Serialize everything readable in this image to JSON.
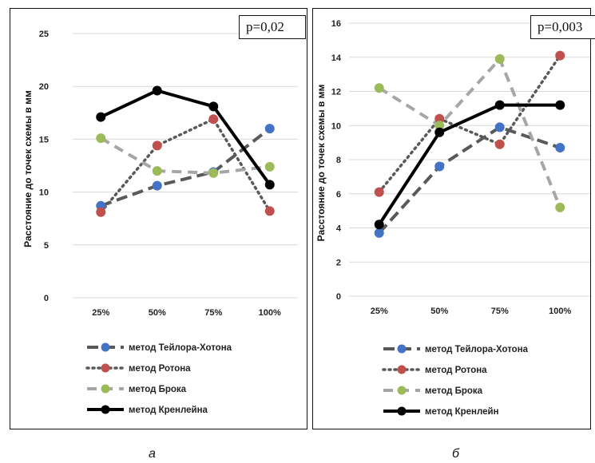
{
  "panels": [
    {
      "id": "a",
      "caption": "а",
      "p_value": "p=0,02",
      "chart_data": {
        "type": "line",
        "categories": [
          "25%",
          "50%",
          "75%",
          "100%"
        ],
        "ylabel": "Расстояние до точек схемы в мм",
        "ylim": [
          0,
          25
        ],
        "yticks": [
          0,
          5,
          10,
          15,
          20,
          25
        ],
        "grid": true,
        "legend_position": "bottom",
        "series": [
          {
            "name": "метод Тейлора-Хотона",
            "values": [
              8.7,
              10.6,
              11.9,
              16.0
            ],
            "line_color": "#595959",
            "marker_color": "#4472C4",
            "dash": "long"
          },
          {
            "name": "метод Ротона",
            "values": [
              8.1,
              14.4,
              16.9,
              8.2
            ],
            "line_color": "#595959",
            "marker_color": "#C0504D",
            "dash": "dot"
          },
          {
            "name": "метод Брока",
            "values": [
              15.1,
              12.0,
              11.8,
              12.4
            ],
            "line_color": "#A6A6A6",
            "marker_color": "#9BBB59",
            "dash": "dash"
          },
          {
            "name": "метод Кренлейна",
            "values": [
              17.1,
              19.6,
              18.1,
              10.7
            ],
            "line_color": "#000000",
            "marker_color": "#000000",
            "dash": "solid"
          }
        ]
      }
    },
    {
      "id": "b",
      "caption": "б",
      "p_value": "p=0,003",
      "chart_data": {
        "type": "line",
        "categories": [
          "25%",
          "50%",
          "75%",
          "100%"
        ],
        "ylabel": "Расстояние до точек схемы в мм",
        "ylim": [
          0,
          16
        ],
        "yticks": [
          0,
          2,
          4,
          6,
          8,
          10,
          12,
          14,
          16
        ],
        "grid": true,
        "legend_position": "bottom",
        "series": [
          {
            "name": "метод Тейлора-Хотона",
            "values": [
              3.7,
              7.6,
              9.9,
              8.7
            ],
            "line_color": "#595959",
            "marker_color": "#4472C4",
            "dash": "long"
          },
          {
            "name": "метод Ротона",
            "values": [
              6.1,
              10.4,
              8.9,
              14.1
            ],
            "line_color": "#595959",
            "marker_color": "#C0504D",
            "dash": "dot"
          },
          {
            "name": "метод Брока",
            "values": [
              12.2,
              10.0,
              13.9,
              5.2
            ],
            "line_color": "#A6A6A6",
            "marker_color": "#9BBB59",
            "dash": "dash"
          },
          {
            "name": "метод Кренлейн",
            "values": [
              4.2,
              9.6,
              11.2,
              11.2
            ],
            "line_color": "#000000",
            "marker_color": "#000000",
            "dash": "solid"
          }
        ]
      }
    }
  ]
}
